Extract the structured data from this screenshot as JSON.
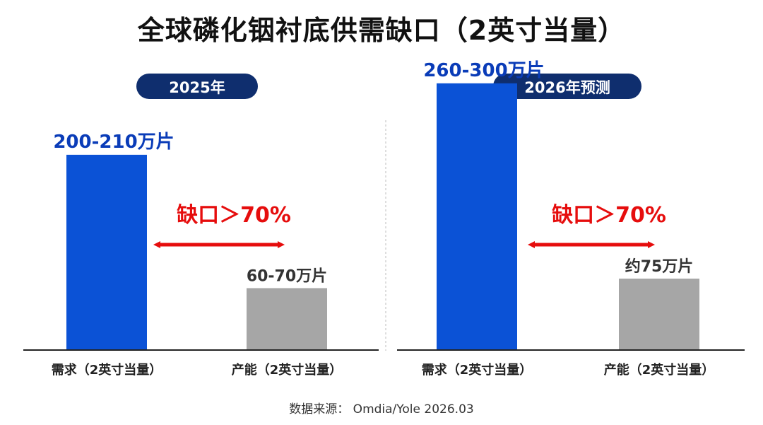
{
  "title": "全球磷化铟衬底供需缺口（2英寸当量）",
  "source": "数据来源： Omdia/Yole 2026.03",
  "colors": {
    "demand": "#0b52d6",
    "capacity": "#a6a6a6",
    "demand_label": "#0a3cb8",
    "capacity_label": "#333333",
    "gap": "#e60d0d",
    "pill": "#0f2e6e"
  },
  "chart_data": [
    {
      "type": "bar",
      "title": "2025年",
      "categories": [
        "需求（2英寸当量）",
        "产能（2英寸当量）"
      ],
      "values": [
        205,
        65
      ],
      "value_ranges": [
        [
          200,
          210
        ],
        [
          60,
          70
        ]
      ],
      "value_labels": [
        "200-210万片",
        "60-70万片"
      ],
      "unit": "万片",
      "annotation": "缺口＞70%",
      "ylim": [
        0,
        310
      ],
      "grid": false
    },
    {
      "type": "bar",
      "title": "2026年预测",
      "categories": [
        "需求（2英寸当量）",
        "产能（2英寸当量）"
      ],
      "values": [
        280,
        75
      ],
      "value_ranges": [
        [
          260,
          300
        ],
        [
          75,
          75
        ]
      ],
      "value_labels": [
        "260-300万片",
        "约75万片"
      ],
      "unit": "万片",
      "annotation": "缺口＞70%",
      "ylim": [
        0,
        310
      ],
      "grid": false
    }
  ]
}
